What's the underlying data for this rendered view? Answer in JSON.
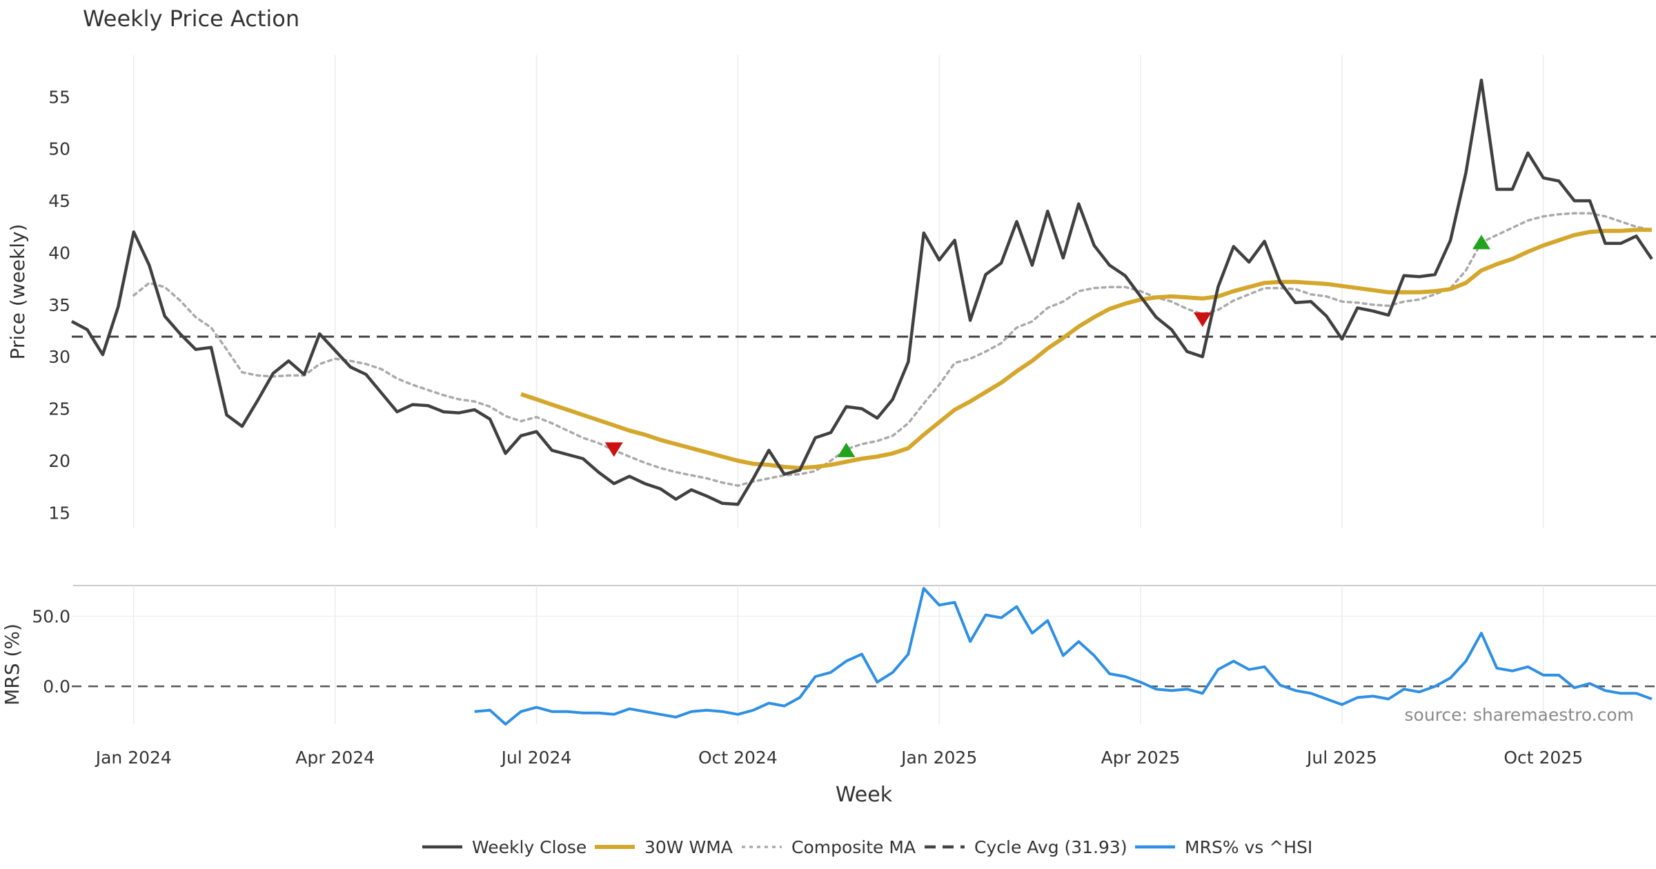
{
  "title": "Weekly Price Action",
  "source_text": "source: sharemaestro.com",
  "xlabel": "Week",
  "colors": {
    "close": "#404040",
    "wma": "#D4A72C",
    "composite": "#AAAAAA",
    "cycle": "#444444",
    "mrs": "#2E8FE3",
    "buy": "#22A31D",
    "sell": "#CC1111",
    "grid": "#EBEBEB"
  },
  "chart_data": [
    {
      "type": "line",
      "title": "Weekly Price Action",
      "ylabel": "Price (weekly)",
      "xlabel": "",
      "ylim": [
        13.5,
        59
      ],
      "yticks": [
        15,
        20,
        25,
        30,
        35,
        40,
        45,
        50,
        55
      ],
      "x_tick_labels": [
        "Jan 2024",
        "Apr 2024",
        "Jul 2024",
        "Oct 2024",
        "Jan 2025",
        "Apr 2025",
        "Jul 2025",
        "Oct 2025"
      ],
      "grid": "vertical",
      "cycle_avg": 31.93,
      "series": [
        {
          "name": "Weekly Close",
          "values": [
            33.4,
            32.6,
            30.2,
            34.8,
            42.0,
            38.8,
            33.9,
            32.2,
            30.7,
            30.9,
            24.4,
            23.3,
            25.8,
            28.4,
            29.6,
            28.3,
            32.2,
            30.6,
            29.0,
            28.3,
            26.5,
            24.7,
            25.4,
            25.3,
            24.7,
            24.6,
            24.9,
            24.0,
            20.7,
            22.4,
            22.8,
            21.0,
            20.6,
            20.2,
            18.9,
            17.8,
            18.5,
            17.8,
            17.3,
            16.3,
            17.2,
            16.6,
            15.9,
            15.8,
            18.3,
            21.0,
            18.7,
            19.1,
            22.2,
            22.7,
            25.2,
            25.0,
            24.1,
            25.9,
            29.5,
            41.9,
            39.3,
            41.2,
            33.5,
            37.9,
            39.0,
            43.0,
            38.8,
            44.0,
            39.5,
            44.7,
            40.7,
            38.8,
            37.8,
            35.8,
            33.8,
            32.6,
            30.5,
            30.0,
            36.7,
            40.6,
            39.1,
            41.1,
            37.2,
            35.2,
            35.3,
            33.9,
            31.7,
            34.7,
            34.4,
            34.0,
            37.8,
            37.7,
            37.9,
            41.2,
            47.7,
            56.6,
            46.1,
            46.1,
            49.6,
            47.2,
            46.9,
            45.0,
            45.0,
            40.9,
            40.9,
            41.6,
            39.4
          ]
        },
        {
          "name": "30W WMA",
          "values": [
            null,
            null,
            null,
            null,
            null,
            null,
            null,
            null,
            null,
            null,
            null,
            null,
            null,
            null,
            null,
            null,
            null,
            null,
            null,
            null,
            null,
            null,
            null,
            null,
            null,
            null,
            null,
            null,
            null,
            26.4,
            25.9,
            25.4,
            24.9,
            24.4,
            23.9,
            23.4,
            22.9,
            22.5,
            22.0,
            21.6,
            21.2,
            20.8,
            20.4,
            20.0,
            19.7,
            19.6,
            19.4,
            19.3,
            19.4,
            19.6,
            19.9,
            20.2,
            20.4,
            20.7,
            21.2,
            22.5,
            23.7,
            24.9,
            25.7,
            26.6,
            27.5,
            28.6,
            29.6,
            30.8,
            31.8,
            32.9,
            33.8,
            34.6,
            35.1,
            35.5,
            35.7,
            35.8,
            35.7,
            35.6,
            35.8,
            36.3,
            36.7,
            37.1,
            37.2,
            37.2,
            37.1,
            37.0,
            36.8,
            36.6,
            36.4,
            36.2,
            36.2,
            36.2,
            36.3,
            36.5,
            37.1,
            38.3,
            38.9,
            39.4,
            40.1,
            40.7,
            41.2,
            41.7,
            42.0,
            42.1,
            42.1,
            42.2,
            42.2
          ]
        },
        {
          "name": "Composite MA",
          "values": [
            null,
            null,
            null,
            null,
            35.9,
            37.1,
            36.7,
            35.4,
            33.8,
            32.8,
            30.7,
            28.5,
            28.2,
            28.1,
            28.2,
            28.2,
            29.3,
            29.8,
            29.6,
            29.3,
            28.8,
            27.9,
            27.3,
            26.8,
            26.3,
            25.9,
            25.7,
            25.2,
            24.3,
            23.8,
            24.2,
            23.6,
            22.9,
            22.2,
            21.7,
            21.0,
            20.4,
            19.8,
            19.3,
            18.9,
            18.6,
            18.3,
            17.9,
            17.6,
            18.0,
            18.3,
            18.6,
            18.7,
            19.0,
            20.0,
            21.1,
            21.6,
            21.9,
            22.4,
            23.6,
            25.5,
            27.3,
            29.4,
            29.8,
            30.5,
            31.3,
            32.8,
            33.4,
            34.7,
            35.3,
            36.3,
            36.6,
            36.7,
            36.7,
            36.3,
            35.7,
            35.3,
            34.6,
            34.1,
            34.5,
            35.4,
            36.0,
            36.6,
            36.6,
            36.5,
            36.0,
            35.8,
            35.3,
            35.2,
            35.0,
            34.9,
            35.3,
            35.5,
            36.0,
            36.6,
            38.3,
            41.0,
            41.7,
            42.4,
            43.1,
            43.5,
            43.7,
            43.8,
            43.8,
            43.5,
            43.0,
            42.5,
            42.2
          ]
        }
      ],
      "markers": [
        {
          "type": "sell",
          "week": 35,
          "value": 21.1
        },
        {
          "type": "buy",
          "week": 50,
          "value": 21.0
        },
        {
          "type": "sell",
          "week": 73,
          "value": 33.6
        },
        {
          "type": "buy",
          "week": 91,
          "value": 41.0
        }
      ]
    },
    {
      "type": "line",
      "ylabel": "MRS (%)",
      "xlabel": "Week",
      "ylim": [
        -27,
        72
      ],
      "yticks": [
        0.0,
        50.0
      ],
      "grid": "vertical",
      "series": [
        {
          "name": "MRS% vs ^HSI",
          "values": [
            null,
            null,
            null,
            null,
            null,
            null,
            null,
            null,
            null,
            null,
            null,
            null,
            null,
            null,
            null,
            null,
            null,
            null,
            null,
            null,
            null,
            null,
            null,
            null,
            null,
            null,
            -18,
            -17,
            -27,
            -18,
            -15,
            -18,
            -18,
            -19,
            -19,
            -20,
            -16,
            -18,
            -20,
            -22,
            -18,
            -17,
            -18,
            -20,
            -17,
            -12,
            -14,
            -8,
            7,
            10,
            18,
            23,
            3,
            10,
            23,
            70,
            58,
            60,
            32,
            51,
            49,
            57,
            38,
            47,
            22,
            32,
            22,
            9,
            7,
            3,
            -2,
            -3,
            -2,
            -5,
            12,
            18,
            12,
            14,
            1,
            -3,
            -5,
            -9,
            -13,
            -8,
            -7,
            -9,
            -2,
            -4,
            0,
            6,
            18,
            38,
            13,
            11,
            14,
            8,
            8,
            -1,
            2,
            -3,
            -5,
            -5,
            -9
          ]
        }
      ]
    }
  ],
  "legend": {
    "position": "bottom-center",
    "items": [
      {
        "label": "Weekly Close",
        "key": "close",
        "dash": "solid"
      },
      {
        "label": "30W WMA",
        "key": "wma",
        "dash": "solid"
      },
      {
        "label": "Composite MA",
        "key": "composite",
        "dash": "dotted"
      },
      {
        "label": "Cycle Avg (31.93)",
        "key": "cycle",
        "dash": "dashed"
      },
      {
        "label": "MRS% vs ^HSI",
        "key": "mrs",
        "dash": "solid"
      }
    ]
  }
}
